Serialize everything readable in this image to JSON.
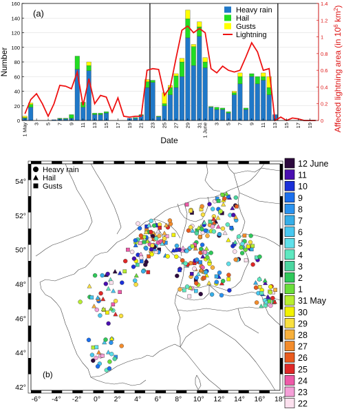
{
  "chart_data": [
    {
      "type": "bar",
      "panel_label": "(a)",
      "xlabel": "Date",
      "ylabel": "Number",
      "y2label_parts": [
        "Affected lightning area (in 10",
        "6",
        " km",
        "2",
        ")"
      ],
      "ylim": [
        0,
        160
      ],
      "yticks": [
        0,
        20,
        40,
        60,
        80,
        100,
        120,
        140,
        160
      ],
      "y2lim": [
        0,
        1.4
      ],
      "y2ticks": [
        0,
        0.2,
        0.4,
        0.6,
        0.8,
        1,
        1.2,
        1.4
      ],
      "y2tick_labels": [
        "0",
        "0.2",
        "0.4",
        "0.6",
        "0.8",
        "1",
        "1.2",
        "1.4"
      ],
      "categories": [
        "1 May",
        "2",
        "3",
        "4",
        "5",
        "6",
        "7",
        "8",
        "9",
        "10",
        "11",
        "12",
        "13",
        "14",
        "15",
        "16",
        "17",
        "18",
        "19",
        "20",
        "21",
        "22",
        "23",
        "24",
        "25",
        "26",
        "27",
        "28",
        "29",
        "30",
        "31",
        "1 June",
        "2",
        "3",
        "4",
        "5",
        "6",
        "7",
        "8",
        "9",
        "10",
        "11",
        "12",
        "13",
        "14",
        "15",
        "16",
        "17",
        "18",
        "19",
        "20"
      ],
      "xtick_labels": [
        "1 May",
        "3",
        "5",
        "7",
        "9",
        "11",
        "13",
        "15",
        "17",
        "19",
        "21",
        "23",
        "25",
        "27",
        "29",
        "31",
        "1 June",
        "3",
        "5",
        "7",
        "9",
        "11",
        "13",
        "15",
        "17",
        "19"
      ],
      "xtick_indices": [
        0,
        2,
        4,
        6,
        8,
        10,
        12,
        14,
        16,
        18,
        20,
        22,
        24,
        26,
        28,
        30,
        31,
        33,
        35,
        37,
        39,
        41,
        43,
        45,
        47,
        49
      ],
      "vlines_after": [
        21,
        43
      ],
      "series": [
        {
          "name": "Heavy rain",
          "color": "#1f78c8",
          "values": [
            3,
            18,
            0,
            0,
            0,
            1,
            2,
            2,
            3,
            70,
            18,
            68,
            8,
            8,
            10,
            0,
            0,
            0,
            3,
            3,
            7,
            45,
            52,
            5,
            20,
            35,
            45,
            60,
            113,
            75,
            115,
            72,
            18,
            15,
            15,
            10,
            35,
            50,
            15,
            60,
            50,
            55,
            35,
            8,
            0,
            0,
            0,
            0,
            0,
            0,
            0
          ]
        },
        {
          "name": "Hail",
          "color": "#22dd22",
          "values": [
            1,
            4,
            0,
            0,
            0,
            0,
            1,
            1,
            5,
            18,
            7,
            7,
            2,
            2,
            2,
            0,
            0,
            0,
            0,
            1,
            1,
            8,
            3,
            1,
            3,
            10,
            16,
            20,
            26,
            26,
            13,
            8,
            1,
            3,
            2,
            2,
            3,
            10,
            2,
            4,
            10,
            5,
            10,
            0,
            0,
            0,
            0,
            0,
            0,
            0,
            0
          ]
        },
        {
          "name": "Gusts",
          "color": "#ffff00",
          "values": [
            2,
            2,
            0,
            0,
            0,
            0,
            0,
            0,
            0,
            0,
            0,
            5,
            0,
            0,
            0,
            0,
            0,
            0,
            0,
            0,
            0,
            3,
            0,
            0,
            15,
            3,
            3,
            5,
            12,
            3,
            7,
            6,
            0,
            0,
            0,
            0,
            2,
            5,
            0,
            0,
            0,
            5,
            15,
            0,
            0,
            0,
            0,
            0,
            0,
            0,
            0
          ]
        },
        {
          "name": "Lightning",
          "color": "#ee1111",
          "axis": "right",
          "values": [
            0.08,
            0.25,
            0.32,
            0.2,
            0.05,
            0.2,
            0.42,
            0.41,
            0.38,
            0.58,
            0.18,
            0.5,
            0.2,
            0.3,
            0.28,
            0.1,
            0.27,
            0.05,
            0.04,
            0.05,
            0.05,
            0.6,
            0.62,
            0.61,
            0.3,
            0.4,
            0.75,
            1.08,
            1.13,
            1.05,
            1.1,
            1.05,
            0.62,
            0.57,
            0.65,
            0.6,
            0.58,
            0.6,
            0.76,
            0.93,
            0.82,
            0.6,
            0.62,
            0.0,
            0.04,
            0.0,
            0.03,
            0.02,
            0.0,
            0.0,
            0.0
          ]
        }
      ]
    },
    {
      "type": "scatter",
      "panel_label": "(b)",
      "xlim": [
        -6.5,
        18
      ],
      "ylim": [
        41.8,
        55
      ],
      "xticks": [
        -6,
        -4,
        -2,
        0,
        2,
        4,
        6,
        8,
        10,
        12,
        14,
        16,
        18
      ],
      "xtick_labels": [
        "-6°",
        "-4°",
        "-2°",
        "0°",
        "2°",
        "4°",
        "6°",
        "8°",
        "10°",
        "12°",
        "14°",
        "16°",
        "18°"
      ],
      "yticks": [
        42,
        44,
        46,
        48,
        50,
        52,
        54
      ],
      "ytick_labels": [
        "42°",
        "44°",
        "46°",
        "48°",
        "50°",
        "52°",
        "54°"
      ],
      "marker_legend": [
        {
          "label": "Heavy rain",
          "marker": "circle"
        },
        {
          "label": "Hail",
          "marker": "triangle"
        },
        {
          "label": "Gusts",
          "marker": "square"
        }
      ],
      "date_legend": [
        {
          "label": "12 June",
          "color": "#2d0a3e"
        },
        {
          "label": "11",
          "color": "#4a0fb0"
        },
        {
          "label": "10",
          "color": "#1a2fd8"
        },
        {
          "label": "9",
          "color": "#1b6fee"
        },
        {
          "label": "8",
          "color": "#2a93f0"
        },
        {
          "label": "7",
          "color": "#36aee8"
        },
        {
          "label": "6",
          "color": "#48c8f0"
        },
        {
          "label": "5",
          "color": "#5fe0ea"
        },
        {
          "label": "4",
          "color": "#5ee8c0"
        },
        {
          "label": "3",
          "color": "#4cd6a0"
        },
        {
          "label": "2",
          "color": "#2fc85a"
        },
        {
          "label": "1",
          "color": "#6ade3a"
        },
        {
          "label": "31 May",
          "color": "#b8ee30"
        },
        {
          "label": "30",
          "color": "#f2f200"
        },
        {
          "label": "29",
          "color": "#f9e040"
        },
        {
          "label": "28",
          "color": "#f7b03c"
        },
        {
          "label": "27",
          "color": "#f38c2c"
        },
        {
          "label": "26",
          "color": "#ea5b1e"
        },
        {
          "label": "25",
          "color": "#e02828"
        },
        {
          "label": "24",
          "color": "#ee5aa8"
        },
        {
          "label": "23",
          "color": "#f5a0d8"
        },
        {
          "label": "22",
          "color": "#fce0ee"
        }
      ]
    }
  ]
}
